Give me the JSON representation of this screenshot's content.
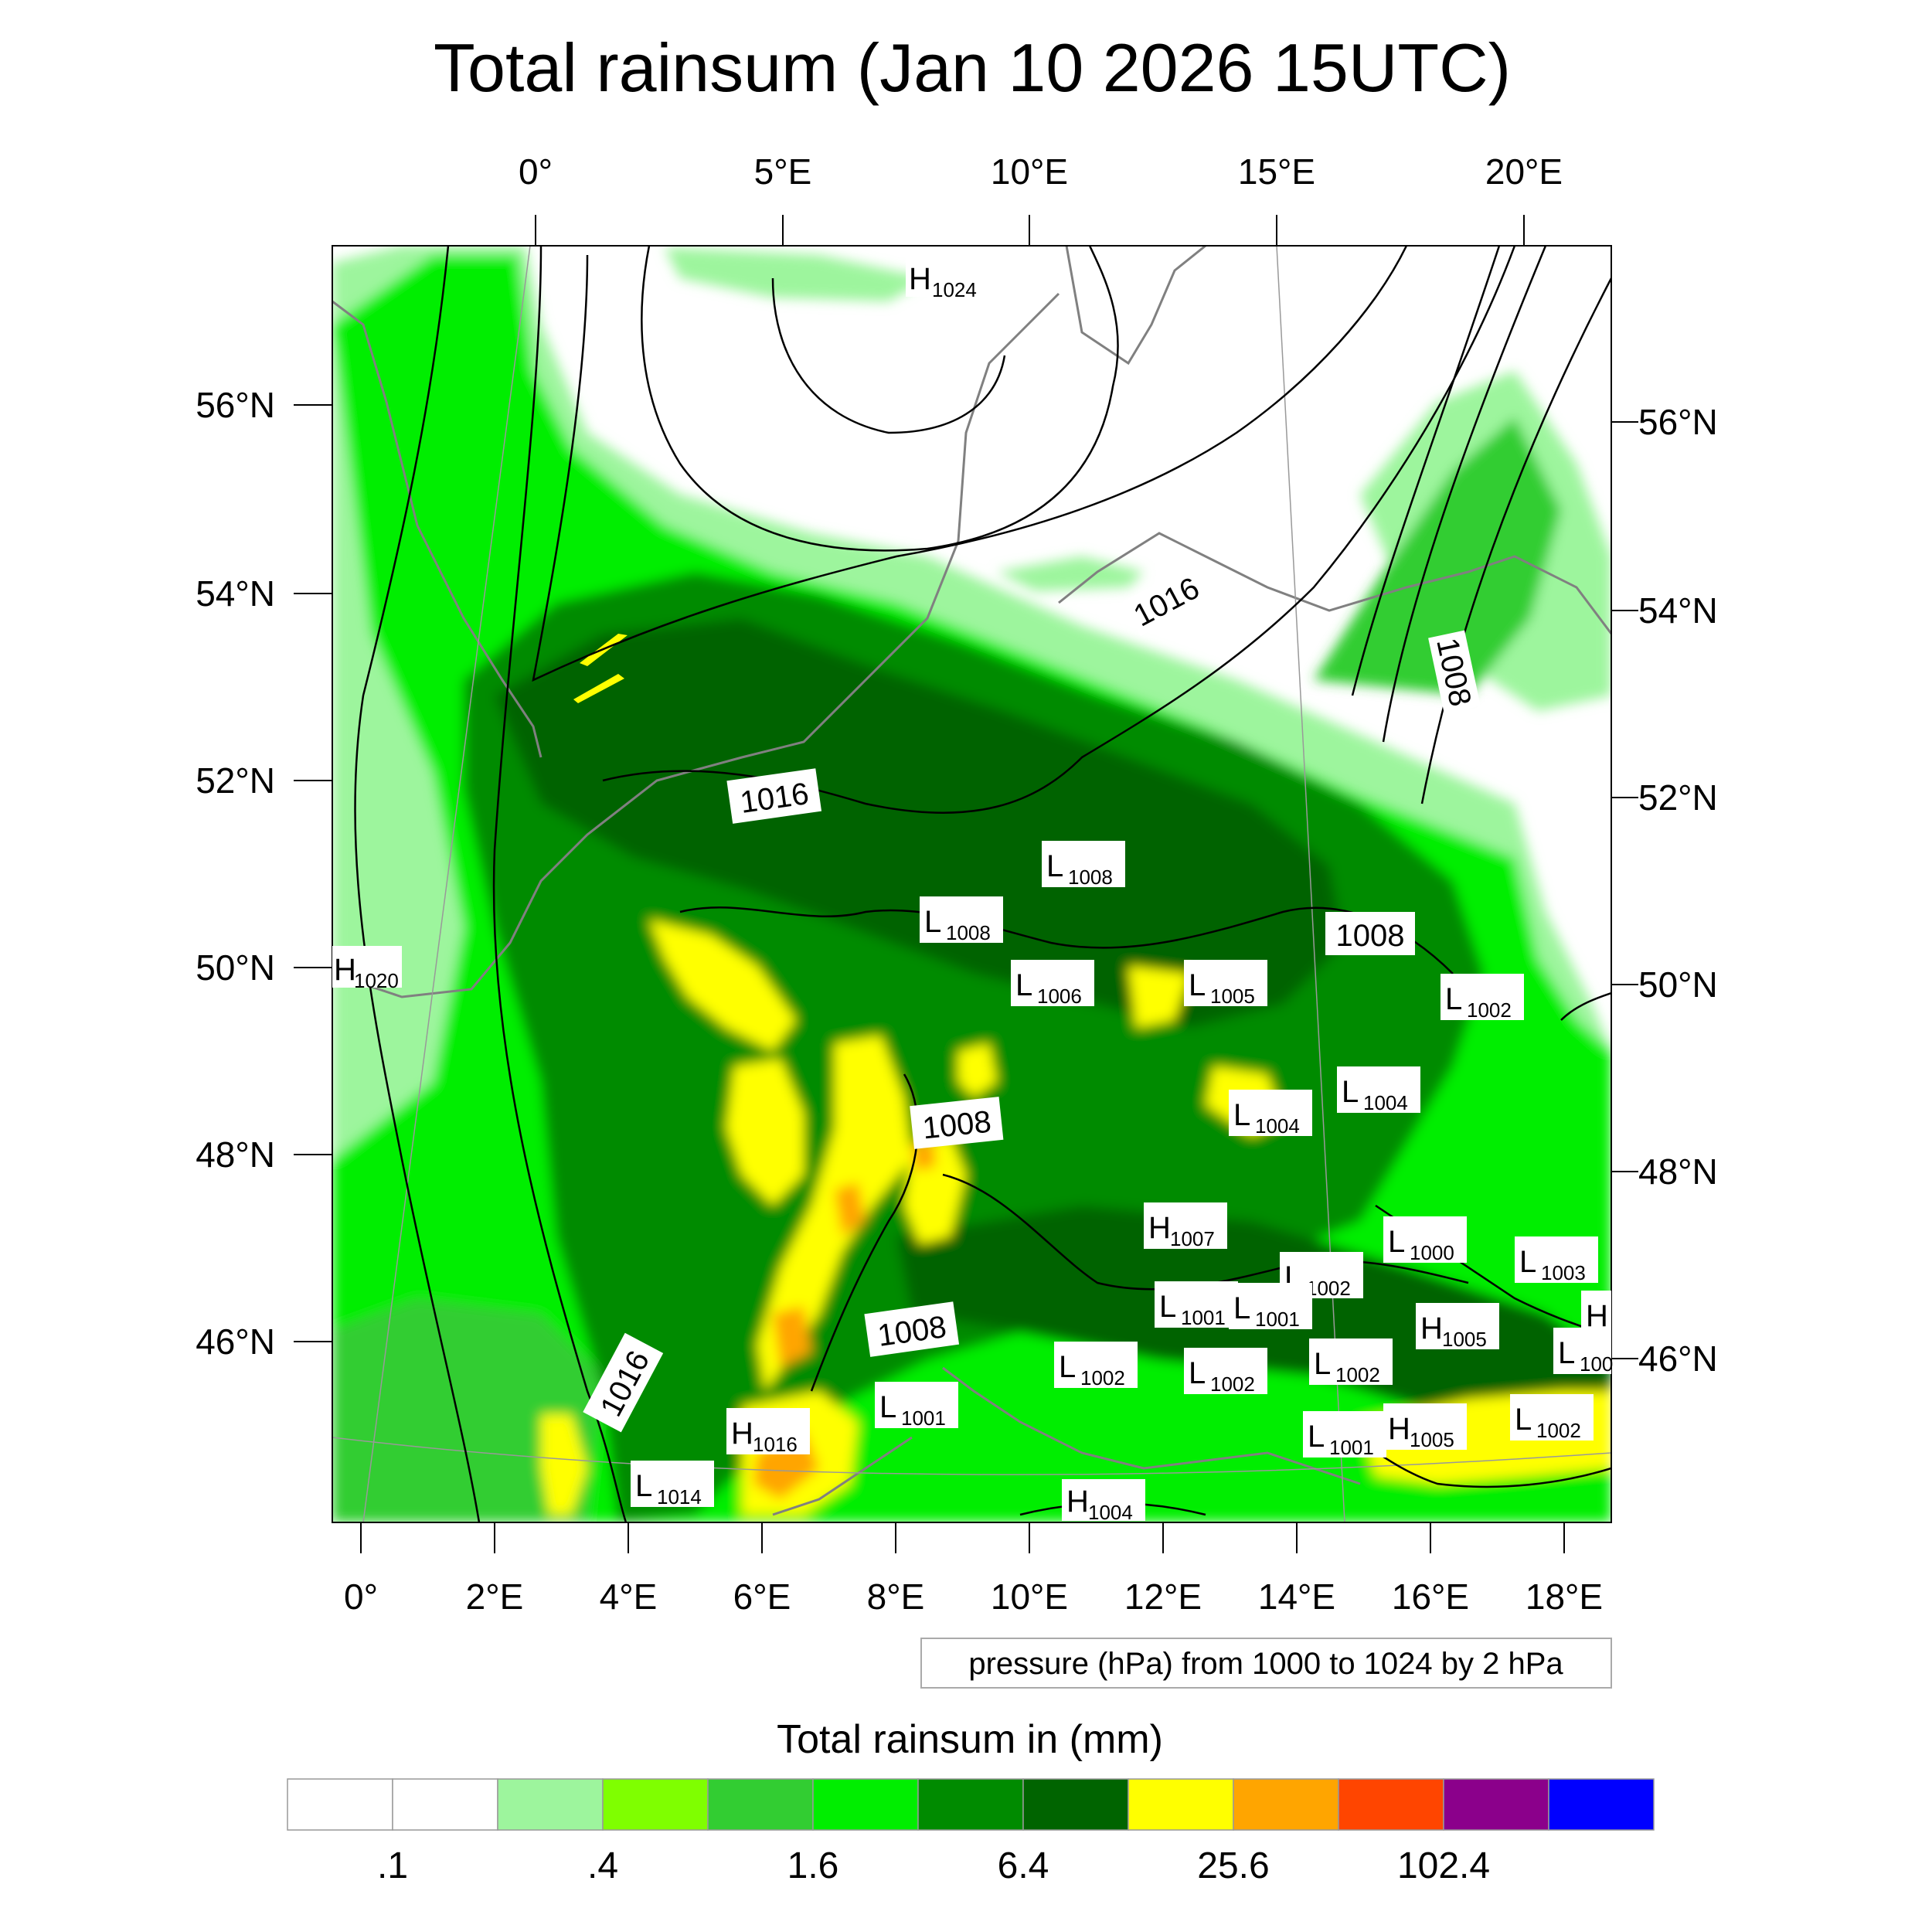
{
  "title": "Total rainsum (Jan 10 2026 15UTC)",
  "top_lon_labels": [
    "0°",
    "5°E",
    "10°E",
    "15°E",
    "20°E"
  ],
  "bottom_lon_labels": [
    "0°",
    "2°E",
    "4°E",
    "6°E",
    "8°E",
    "10°E",
    "12°E",
    "14°E",
    "16°E",
    "18°E"
  ],
  "left_lat_labels": [
    "56°N",
    "54°N",
    "52°N",
    "50°N",
    "48°N",
    "46°N"
  ],
  "right_lat_labels": [
    "56°N",
    "54°N",
    "52°N",
    "50°N",
    "48°N",
    "46°N"
  ],
  "isobar_labels": [
    "1016",
    "1016",
    "1016",
    "1008",
    "1008",
    "1008",
    "1008"
  ],
  "pressure_centers": [
    {
      "t": "H",
      "v": "1024"
    },
    {
      "t": "H",
      "v": "1020"
    },
    {
      "t": "L",
      "v": "1008"
    },
    {
      "t": "L",
      "v": "1008"
    },
    {
      "t": "L",
      "v": "1006"
    },
    {
      "t": "L",
      "v": "1005"
    },
    {
      "t": "L",
      "v": "1002"
    },
    {
      "t": "L",
      "v": "1004"
    },
    {
      "t": "L",
      "v": "1004"
    },
    {
      "t": "H",
      "v": "1007"
    },
    {
      "t": "L",
      "v": "1000"
    },
    {
      "t": "L",
      "v": "1003"
    },
    {
      "t": "L",
      "v": "1002"
    },
    {
      "t": "L",
      "v": "1001"
    },
    {
      "t": "L",
      "v": "1001"
    },
    {
      "t": "H",
      "v": "1005"
    },
    {
      "t": "H",
      "v": ""
    },
    {
      "t": "L",
      "v": "100"
    },
    {
      "t": "L",
      "v": "1002"
    },
    {
      "t": "L",
      "v": "1002"
    },
    {
      "t": "L",
      "v": "1002"
    },
    {
      "t": "L",
      "v": "1001"
    },
    {
      "t": "H",
      "v": "1016"
    },
    {
      "t": "L",
      "v": "1014"
    },
    {
      "t": "L",
      "v": "1001"
    },
    {
      "t": "H",
      "v": "1005"
    },
    {
      "t": "L",
      "v": "1002"
    },
    {
      "t": "H",
      "v": "1004"
    }
  ],
  "pressure_note": "pressure (hPa) from 1000 to 1024 by 2 hPa",
  "colorbar_title": "Total rainsum in (mm)",
  "colorbar_labels": [
    ".1",
    ".4",
    "1.6",
    "6.4",
    "25.6",
    "102.4"
  ],
  "colorbar_colors": [
    "#ffffff",
    "#ffffff",
    "#9df59d",
    "#7fff00",
    "#32cd32",
    "#00ee00",
    "#008b00",
    "#006400",
    "#ffff00",
    "#ffa500",
    "#ff4500",
    "#8b008b",
    "#0000ff"
  ]
}
